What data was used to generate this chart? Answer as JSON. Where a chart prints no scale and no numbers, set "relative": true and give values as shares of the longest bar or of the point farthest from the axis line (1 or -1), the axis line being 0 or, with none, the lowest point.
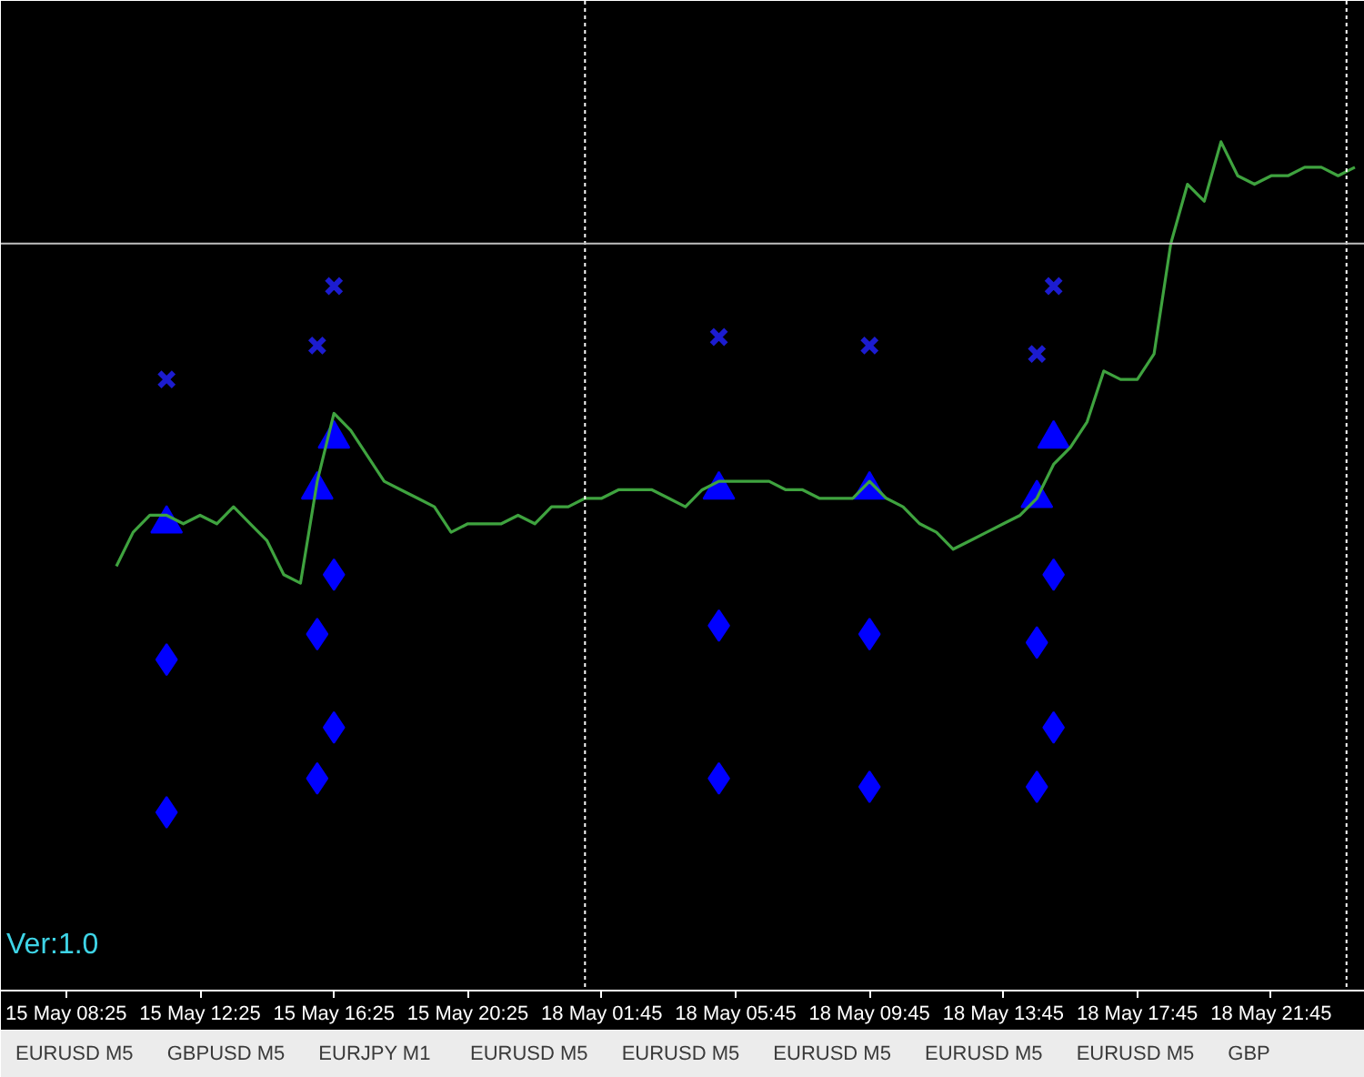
{
  "chart_data": {
    "type": "line",
    "relative": true,
    "categories": [
      "15 May 08:25",
      null,
      null,
      null,
      null,
      null,
      null,
      null,
      "15 May 12:25",
      null,
      null,
      null,
      null,
      null,
      null,
      null,
      "15 May 16:25",
      null,
      null,
      null,
      null,
      null,
      null,
      null,
      "15 May 20:25",
      null,
      null,
      null,
      null,
      null,
      null,
      null,
      "18 May 01:45",
      null,
      null,
      null,
      null,
      null,
      null,
      null,
      "18 May 05:45",
      null,
      null,
      null,
      null,
      null,
      null,
      null,
      "18 May 09:45",
      null,
      null,
      null,
      null,
      null,
      null,
      null,
      "18 May 13:45",
      null,
      null,
      null,
      null,
      null,
      null,
      null,
      "18 May 17:45",
      null,
      null,
      null,
      null,
      null,
      null,
      null,
      "18 May 21:45",
      null,
      null,
      null,
      null,
      null
    ],
    "series": [
      {
        "color": "#3fa33f",
        "values": [
          null,
          null,
          null,
          0.5,
          0.54,
          0.56,
          0.56,
          0.55,
          0.56,
          0.55,
          0.57,
          0.55,
          0.53,
          0.49,
          0.48,
          0.6,
          0.68,
          0.66,
          0.63,
          0.6,
          0.59,
          0.58,
          0.57,
          0.54,
          0.55,
          0.55,
          0.55,
          0.56,
          0.55,
          0.57,
          0.57,
          0.58,
          0.58,
          0.59,
          0.59,
          0.59,
          0.58,
          0.57,
          0.59,
          0.6,
          0.6,
          0.6,
          0.6,
          0.59,
          0.59,
          0.58,
          0.58,
          0.58,
          0.6,
          0.58,
          0.57,
          0.55,
          0.54,
          0.52,
          0.53,
          0.54,
          0.55,
          0.56,
          0.58,
          0.62,
          0.64,
          0.67,
          0.73,
          0.72,
          0.72,
          0.75,
          0.88,
          0.95,
          0.93,
          1.0,
          0.96,
          0.95,
          0.96,
          0.96,
          0.97,
          0.97,
          0.96,
          0.97
        ]
      },
      {
        "type": "scatter",
        "marker": "triangle",
        "color": "#0000ff",
        "values": [
          null,
          null,
          null,
          null,
          null,
          null,
          0.55,
          null,
          null,
          null,
          null,
          null,
          null,
          null,
          null,
          0.59,
          0.65,
          null,
          null,
          null,
          null,
          null,
          null,
          null,
          null,
          null,
          null,
          null,
          null,
          null,
          null,
          null,
          null,
          null,
          null,
          null,
          null,
          null,
          null,
          0.59,
          null,
          null,
          null,
          null,
          null,
          null,
          null,
          null,
          0.59,
          null,
          null,
          null,
          null,
          null,
          null,
          null,
          null,
          null,
          0.58,
          0.65,
          null,
          null,
          null,
          null,
          null,
          null,
          null,
          null,
          null,
          null,
          null,
          null,
          null,
          null,
          null,
          null,
          null,
          null
        ]
      },
      {
        "type": "scatter",
        "marker": "diamond",
        "color": "#0000ff",
        "values": [
          null,
          null,
          null,
          null,
          null,
          null,
          0.39,
          null,
          null,
          null,
          null,
          null,
          null,
          null,
          null,
          0.42,
          0.49,
          null,
          null,
          null,
          null,
          null,
          null,
          null,
          null,
          null,
          null,
          null,
          null,
          null,
          null,
          null,
          null,
          null,
          null,
          null,
          null,
          null,
          null,
          0.43,
          null,
          null,
          null,
          null,
          null,
          null,
          null,
          null,
          0.42,
          null,
          null,
          null,
          null,
          null,
          null,
          null,
          null,
          null,
          0.41,
          0.49,
          null,
          null,
          null,
          null,
          null,
          null,
          null,
          null,
          null,
          null,
          null,
          null,
          null,
          null,
          null,
          null,
          null,
          null
        ]
      },
      {
        "type": "scatter",
        "marker": "diamond",
        "color": "#0000ff",
        "values": [
          null,
          null,
          null,
          null,
          null,
          null,
          0.21,
          null,
          null,
          null,
          null,
          null,
          null,
          null,
          null,
          0.25,
          0.31,
          null,
          null,
          null,
          null,
          null,
          null,
          null,
          null,
          null,
          null,
          null,
          null,
          null,
          null,
          null,
          null,
          null,
          null,
          null,
          null,
          null,
          null,
          0.25,
          null,
          null,
          null,
          null,
          null,
          null,
          null,
          null,
          0.24,
          null,
          null,
          null,
          null,
          null,
          null,
          null,
          null,
          null,
          0.24,
          0.31,
          null,
          null,
          null,
          null,
          null,
          null,
          null,
          null,
          null,
          null,
          null,
          null,
          null,
          null,
          null,
          null,
          null,
          null
        ]
      },
      {
        "type": "scatter",
        "marker": "cross",
        "color": "#1c1cd0",
        "values": [
          null,
          null,
          null,
          null,
          null,
          null,
          0.72,
          null,
          null,
          null,
          null,
          null,
          null,
          null,
          null,
          0.76,
          0.83,
          null,
          null,
          null,
          null,
          null,
          null,
          null,
          null,
          null,
          null,
          null,
          null,
          null,
          null,
          null,
          null,
          null,
          null,
          null,
          null,
          null,
          null,
          0.77,
          null,
          null,
          null,
          null,
          null,
          null,
          null,
          null,
          0.76,
          null,
          null,
          null,
          null,
          null,
          null,
          null,
          null,
          null,
          0.75,
          0.83,
          null,
          null,
          null,
          null,
          null,
          null,
          null,
          null,
          null,
          null,
          null,
          null,
          null,
          null,
          null,
          null,
          null,
          null
        ]
      }
    ],
    "ref_lines": [
      {
        "axis": "y",
        "value": 0.88,
        "color": "#c0c0c0",
        "line_style": "solid"
      }
    ],
    "annotations": [
      "Ver:1.0",
      "EURUSD M5",
      "GBPUSD M5",
      "EURJPY M1",
      "EURUSD M5",
      "EURUSD M5",
      "EURUSD M5",
      "EURUSD M5",
      "EURUSD M5",
      "GBP"
    ]
  }
}
